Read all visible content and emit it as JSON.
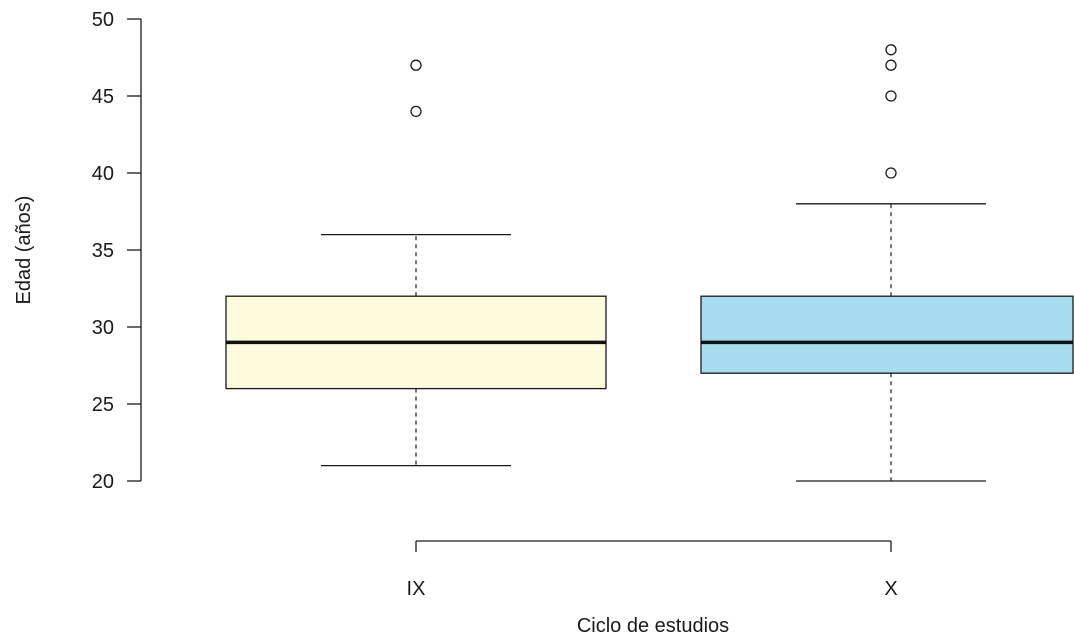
{
  "chart_data": {
    "type": "boxplot",
    "title": "",
    "xlabel": "Ciclo de estudios",
    "ylabel": "Edad (años)",
    "ylim": [
      20,
      50
    ],
    "yticks": [
      20,
      25,
      30,
      35,
      40,
      45,
      50
    ],
    "grid": false,
    "categories": [
      "IX",
      "X"
    ],
    "boxes": [
      {
        "category": "IX",
        "whisker_low": 21,
        "q1": 26,
        "median": 29,
        "q3": 32,
        "whisker_high": 36,
        "outliers": [
          44,
          47
        ],
        "color": "#fdfbdc"
      },
      {
        "category": "X",
        "whisker_low": 20,
        "q1": 27,
        "median": 29,
        "q3": 32,
        "whisker_high": 38,
        "outliers": [
          40,
          45,
          47,
          48
        ],
        "color": "#a6dcef"
      }
    ]
  }
}
